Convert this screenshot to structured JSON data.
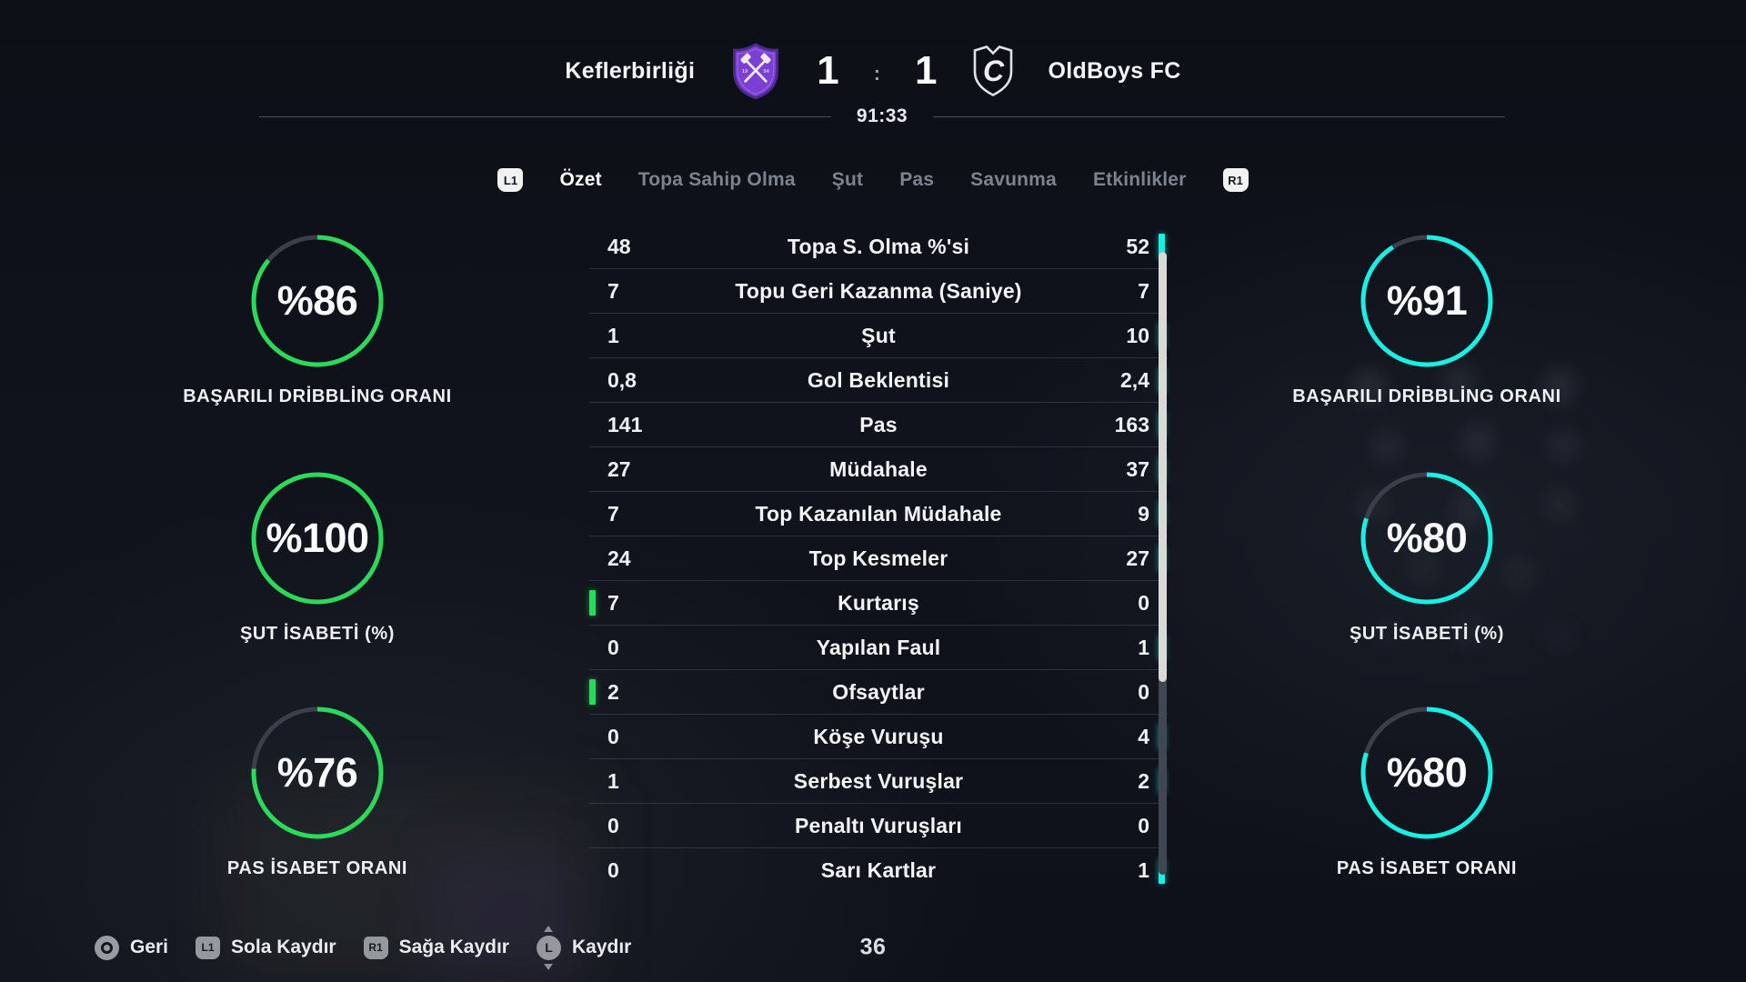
{
  "colors": {
    "home_accent": "#2cda5a",
    "away_accent": "#19f0e4",
    "gauge_track": "#3a3f49"
  },
  "header": {
    "home_team": "Keflerbirliği",
    "home_crest": "purple-shield-crossed-hammers",
    "home_score": "1",
    "score_separator": ":",
    "away_score": "1",
    "away_crest": "white-outline-shield-letter-c",
    "away_team": "OldBoys FC",
    "clock": "91:33"
  },
  "tabs": {
    "prev_button": "L1",
    "next_button": "R1",
    "items": [
      {
        "label": "Özet",
        "active": true
      },
      {
        "label": "Topa Sahip Olma",
        "active": false
      },
      {
        "label": "Şut",
        "active": false
      },
      {
        "label": "Pas",
        "active": false
      },
      {
        "label": "Savunma",
        "active": false
      },
      {
        "label": "Etkinlikler",
        "active": false
      }
    ]
  },
  "stats": {
    "rows": [
      {
        "home": "48",
        "label": "Topa S. Olma %'si",
        "away": "52",
        "leader": "away"
      },
      {
        "home": "7",
        "label": "Topu Geri Kazanma (Saniye)",
        "away": "7",
        "leader": "none"
      },
      {
        "home": "1",
        "label": "Şut",
        "away": "10",
        "leader": "away"
      },
      {
        "home": "0,8",
        "label": "Gol Beklentisi",
        "away": "2,4",
        "leader": "away"
      },
      {
        "home": "141",
        "label": "Pas",
        "away": "163",
        "leader": "away"
      },
      {
        "home": "27",
        "label": "Müdahale",
        "away": "37",
        "leader": "away"
      },
      {
        "home": "7",
        "label": "Top Kazanılan Müdahale",
        "away": "9",
        "leader": "away"
      },
      {
        "home": "24",
        "label": "Top Kesmeler",
        "away": "27",
        "leader": "away"
      },
      {
        "home": "7",
        "label": "Kurtarış",
        "away": "0",
        "leader": "home"
      },
      {
        "home": "0",
        "label": "Yapılan Faul",
        "away": "1",
        "leader": "away"
      },
      {
        "home": "2",
        "label": "Ofsaytlar",
        "away": "0",
        "leader": "home"
      },
      {
        "home": "0",
        "label": "Köşe Vuruşu",
        "away": "4",
        "leader": "away"
      },
      {
        "home": "1",
        "label": "Serbest Vuruşlar",
        "away": "2",
        "leader": "away"
      },
      {
        "home": "0",
        "label": "Penaltı Vuruşları",
        "away": "0",
        "leader": "none"
      },
      {
        "home": "0",
        "label": "Sarı Kartlar",
        "away": "1",
        "leader": "away"
      }
    ],
    "scrollbar": {
      "thumb_size_ratio": 0.69,
      "thumb_start_ratio": 0
    }
  },
  "gauges": {
    "left": [
      {
        "value_label": "%86",
        "percent": 86,
        "label": "BAŞARILI DRİBBLİNG ORANI"
      },
      {
        "value_label": "%100",
        "percent": 100,
        "label": "ŞUT İSABETİ (%)"
      },
      {
        "value_label": "%76",
        "percent": 76,
        "label": "PAS İSABET ORANI"
      }
    ],
    "right": [
      {
        "value_label": "%91",
        "percent": 91,
        "label": "BAŞARILI DRİBBLİNG ORANI"
      },
      {
        "value_label": "%80",
        "percent": 80,
        "label": "ŞUT İSABETİ (%)"
      },
      {
        "value_label": "%80",
        "percent": 80,
        "label": "PAS İSABET ORANI"
      }
    ]
  },
  "footer": {
    "hints": [
      {
        "button": "circle",
        "label": "Geri"
      },
      {
        "button": "L1",
        "label": "Sola Kaydır"
      },
      {
        "button": "R1",
        "label": "Sağa Kaydır"
      },
      {
        "button": "stick",
        "label": "Kaydır"
      }
    ],
    "page_indicator": "36"
  }
}
